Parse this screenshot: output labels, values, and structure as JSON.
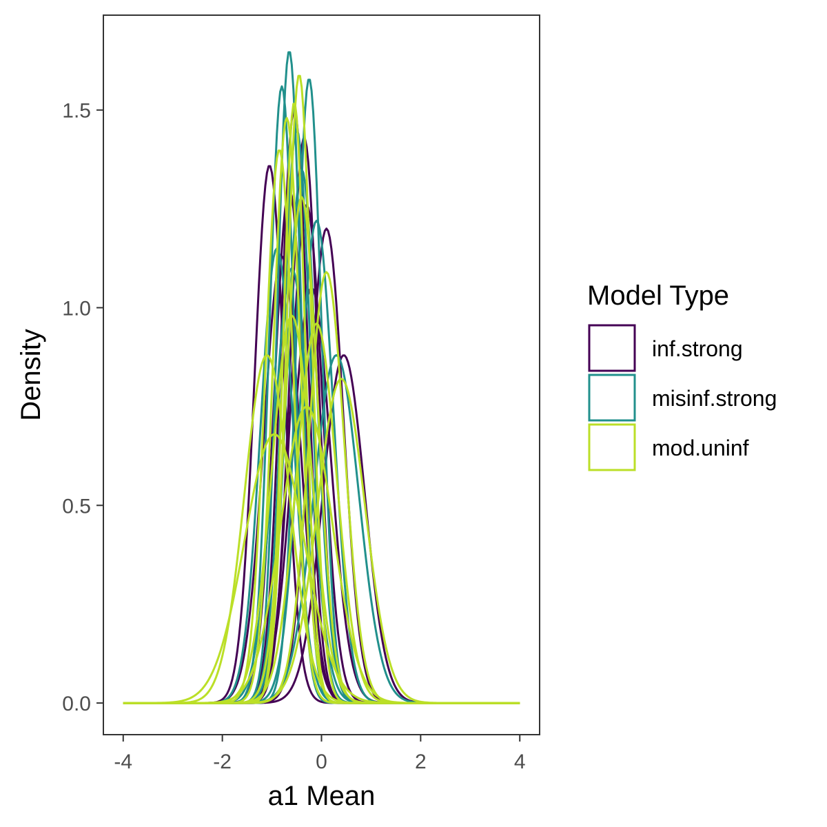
{
  "chart_data": {
    "type": "line",
    "subtype": "density",
    "title": "",
    "xlabel": "a1 Mean",
    "ylabel": "Density",
    "xlim": [
      -4.4,
      4.4
    ],
    "ylim": [
      -0.08,
      1.74
    ],
    "x_ticks": [
      -4,
      -2,
      0,
      2,
      4
    ],
    "x_tick_labels": [
      "-4",
      "-2",
      "0",
      "2",
      "4"
    ],
    "y_ticks": [
      0.0,
      0.5,
      1.0,
      1.5
    ],
    "y_tick_labels": [
      "0.0",
      "0.5",
      "1.0",
      "1.5"
    ],
    "grid": false,
    "legend": {
      "title": "Model Type",
      "position": "right",
      "entries": [
        {
          "label": "inf.strong",
          "color": "#440154"
        },
        {
          "label": "misinf.strong",
          "color": "#21908C"
        },
        {
          "label": "mod.uninf",
          "color": "#BBDF27"
        }
      ]
    },
    "series": [
      {
        "group": "inf.strong",
        "color": "#440154",
        "mu": -1.05,
        "sigma": 0.3,
        "peak": 1.36
      },
      {
        "group": "inf.strong",
        "color": "#440154",
        "mu": 0.1,
        "sigma": 0.34,
        "peak": 1.2
      },
      {
        "group": "inf.strong",
        "color": "#440154",
        "mu": 0.45,
        "sigma": 0.42,
        "peak": 0.88
      },
      {
        "group": "inf.strong",
        "color": "#440154",
        "mu": -0.35,
        "sigma": 0.28,
        "peak": 1.43
      },
      {
        "group": "inf.strong",
        "color": "#440154",
        "mu": -0.8,
        "sigma": 0.36,
        "peak": 1.13
      },
      {
        "group": "inf.strong",
        "color": "#440154",
        "mu": -0.3,
        "sigma": 0.32,
        "peak": 1.26
      },
      {
        "group": "inf.strong",
        "color": "#440154",
        "mu": -0.55,
        "sigma": 0.27,
        "peak": 1.5
      },
      {
        "group": "inf.strong",
        "color": "#440154",
        "mu": -0.2,
        "sigma": 0.38,
        "peak": 1.05
      },
      {
        "group": "inf.strong",
        "color": "#440154",
        "mu": -0.65,
        "sigma": 0.3,
        "peak": 1.3
      },
      {
        "group": "misinf.strong",
        "color": "#21908C",
        "mu": -0.65,
        "sigma": 0.24,
        "peak": 1.65
      },
      {
        "group": "misinf.strong",
        "color": "#21908C",
        "mu": -0.25,
        "sigma": 0.25,
        "peak": 1.58
      },
      {
        "group": "misinf.strong",
        "color": "#21908C",
        "mu": -0.8,
        "sigma": 0.25,
        "peak": 1.56
      },
      {
        "group": "misinf.strong",
        "color": "#21908C",
        "mu": 0.3,
        "sigma": 0.45,
        "peak": 0.88
      },
      {
        "group": "misinf.strong",
        "color": "#21908C",
        "mu": -0.4,
        "sigma": 0.3,
        "peak": 1.35
      },
      {
        "group": "misinf.strong",
        "color": "#21908C",
        "mu": -0.9,
        "sigma": 0.33,
        "peak": 1.15
      },
      {
        "group": "misinf.strong",
        "color": "#21908C",
        "mu": -0.5,
        "sigma": 0.28,
        "peak": 1.45
      },
      {
        "group": "misinf.strong",
        "color": "#21908C",
        "mu": -0.1,
        "sigma": 0.34,
        "peak": 1.22
      },
      {
        "group": "misinf.strong",
        "color": "#21908C",
        "mu": -0.6,
        "sigma": 0.36,
        "peak": 1.1
      },
      {
        "group": "mod.uninf",
        "color": "#BBDF27",
        "mu": -0.45,
        "sigma": 0.25,
        "peak": 1.59
      },
      {
        "group": "mod.uninf",
        "color": "#BBDF27",
        "mu": -0.85,
        "sigma": 0.28,
        "peak": 1.4
      },
      {
        "group": "mod.uninf",
        "color": "#BBDF27",
        "mu": 0.1,
        "sigma": 0.36,
        "peak": 1.09
      },
      {
        "group": "mod.uninf",
        "color": "#BBDF27",
        "mu": -0.1,
        "sigma": 0.4,
        "peak": 0.96
      },
      {
        "group": "mod.uninf",
        "color": "#BBDF27",
        "mu": -0.6,
        "sigma": 0.4,
        "peak": 0.98
      },
      {
        "group": "mod.uninf",
        "color": "#BBDF27",
        "mu": 0.4,
        "sigma": 0.48,
        "peak": 0.82
      },
      {
        "group": "mod.uninf",
        "color": "#BBDF27",
        "mu": -0.4,
        "sigma": 0.32,
        "peak": 1.28
      },
      {
        "group": "mod.uninf",
        "color": "#BBDF27",
        "mu": -0.7,
        "sigma": 0.27,
        "peak": 1.48
      },
      {
        "group": "mod.uninf",
        "color": "#BBDF27",
        "mu": -1.1,
        "sigma": 0.45,
        "peak": 0.88
      },
      {
        "group": "mod.uninf",
        "color": "#BBDF27",
        "mu": -0.95,
        "sigma": 0.6,
        "peak": 0.68
      },
      {
        "group": "mod.uninf",
        "color": "#BBDF27",
        "mu": -0.3,
        "sigma": 0.52,
        "peak": 0.75
      },
      {
        "group": "mod.uninf",
        "color": "#BBDF27",
        "mu": -0.55,
        "sigma": 0.22,
        "peak": 1.52
      }
    ]
  }
}
